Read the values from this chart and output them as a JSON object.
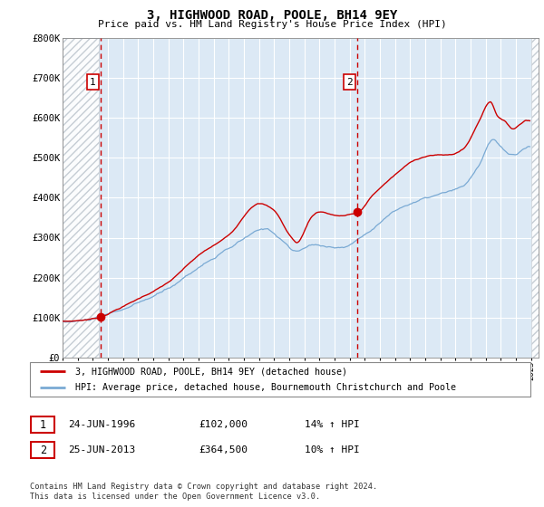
{
  "title": "3, HIGHWOOD ROAD, POOLE, BH14 9EY",
  "subtitle": "Price paid vs. HM Land Registry's House Price Index (HPI)",
  "legend_line1": "3, HIGHWOOD ROAD, POOLE, BH14 9EY (detached house)",
  "legend_line2": "HPI: Average price, detached house, Bournemouth Christchurch and Poole",
  "footer": "Contains HM Land Registry data © Crown copyright and database right 2024.\nThis data is licensed under the Open Government Licence v3.0.",
  "transaction1_label": "1",
  "transaction1_date": "24-JUN-1996",
  "transaction1_price": "£102,000",
  "transaction1_hpi": "14% ↑ HPI",
  "transaction2_label": "2",
  "transaction2_date": "25-JUN-2013",
  "transaction2_price": "£364,500",
  "transaction2_hpi": "10% ↑ HPI",
  "sale1_year": 1996.5,
  "sale1_price": 102000,
  "sale2_year": 2013.5,
  "sale2_price": 364500,
  "ylim": [
    0,
    800000
  ],
  "xlim": [
    1994,
    2025.5
  ],
  "yticks": [
    0,
    100000,
    200000,
    300000,
    400000,
    500000,
    600000,
    700000,
    800000
  ],
  "ytick_labels": [
    "£0",
    "£100K",
    "£200K",
    "£300K",
    "£400K",
    "£500K",
    "£600K",
    "£700K",
    "£800K"
  ],
  "hpi_color": "#7aaad4",
  "sale_color": "#cc0000",
  "plot_bg_color": "#dce9f5",
  "grid_color": "#ffffff",
  "hatch_color": "#c0c8d0"
}
